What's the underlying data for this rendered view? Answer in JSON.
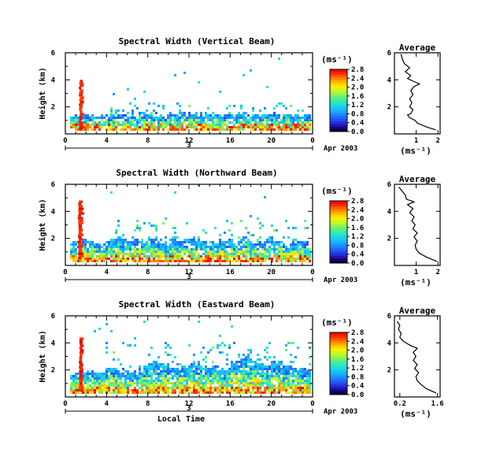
{
  "figure": {
    "day_label": "3",
    "month_label": "Apr 2003",
    "xlabel": "Local Time",
    "ylabel": "Height (km)",
    "unit_label": "(ms⁻¹)",
    "avg_xlabel": "(ms⁻¹)"
  },
  "chart_data": [
    {
      "type": "heatmap",
      "title": "Spectral Width (Vertical Beam)",
      "xlabel": "Local Time",
      "ylabel": "Height (km)",
      "xlim": [
        0,
        24
      ],
      "ylim": [
        0,
        6
      ],
      "xticks": [
        "0",
        "4",
        "8",
        "12",
        "16",
        "20",
        "0"
      ],
      "yticks": [
        "2",
        "4",
        "6"
      ],
      "colorbar_ticks": [
        "0.0",
        "0.4",
        "0.8",
        "1.2",
        "1.6",
        "2.0",
        "2.4",
        "2.8"
      ],
      "colorbar_range": [
        0,
        2.8
      ],
      "grid": false,
      "clutter_tops": [
        1.3,
        1.45,
        1.4,
        1.35,
        1.45,
        1.4,
        1.35,
        1.5,
        1.45,
        1.4,
        1.5,
        1.55,
        1.5,
        1.45,
        1.5,
        1.4,
        1.45,
        1.5,
        1.4,
        1.35,
        1.45,
        1.4,
        1.35,
        1.4
      ],
      "plume": {
        "time_range": [
          1.3,
          1.7
        ],
        "top_km": 4.0
      },
      "scattered_upper_km": [
        2.0,
        2.3
      ],
      "average": {
        "title": "Average",
        "xlabel": "(ms⁻¹)",
        "xticks": [
          "1",
          "2"
        ],
        "xlim": [
          0,
          2.1
        ],
        "yticks": [
          "2",
          "4",
          "6"
        ],
        "ylim": [
          0,
          6
        ],
        "profile": [
          {
            "h": 0.3,
            "v": 1.9
          },
          {
            "h": 0.5,
            "v": 1.5
          },
          {
            "h": 0.8,
            "v": 1.05
          },
          {
            "h": 1.0,
            "v": 0.95
          },
          {
            "h": 1.2,
            "v": 0.7
          },
          {
            "h": 1.4,
            "v": 0.6
          },
          {
            "h": 1.5,
            "v": 0.75
          },
          {
            "h": 1.8,
            "v": 0.85
          },
          {
            "h": 2.0,
            "v": 0.7
          },
          {
            "h": 2.3,
            "v": 0.8
          },
          {
            "h": 2.6,
            "v": 0.7
          },
          {
            "h": 2.9,
            "v": 0.85
          },
          {
            "h": 3.2,
            "v": 0.75
          },
          {
            "h": 3.5,
            "v": 0.9
          },
          {
            "h": 3.7,
            "v": 1.15
          },
          {
            "h": 3.9,
            "v": 0.85
          },
          {
            "h": 4.1,
            "v": 0.6
          },
          {
            "h": 4.3,
            "v": 0.75
          },
          {
            "h": 4.6,
            "v": 0.5
          },
          {
            "h": 4.9,
            "v": 0.7
          },
          {
            "h": 5.2,
            "v": 0.45
          },
          {
            "h": 5.6,
            "v": 0.35
          },
          {
            "h": 5.9,
            "v": 0.3
          }
        ]
      }
    },
    {
      "type": "heatmap",
      "title": "Spectral Width (Northward Beam)",
      "xlabel": "Local Time",
      "ylabel": "Height (km)",
      "xlim": [
        0,
        24
      ],
      "ylim": [
        0,
        6
      ],
      "xticks": [
        "0",
        "4",
        "8",
        "12",
        "16",
        "20",
        "0"
      ],
      "yticks": [
        "2",
        "4",
        "6"
      ],
      "colorbar_ticks": [
        "0.0",
        "0.4",
        "0.8",
        "1.2",
        "1.6",
        "2.0",
        "2.4",
        "2.8"
      ],
      "colorbar_range": [
        0,
        2.8
      ],
      "grid": false,
      "clutter_tops": [
        1.7,
        1.9,
        1.8,
        1.6,
        1.9,
        2.0,
        1.8,
        1.9,
        2.1,
        1.7,
        1.8,
        1.9,
        2.0,
        1.8,
        1.7,
        1.9,
        1.8,
        2.0,
        1.7,
        1.8,
        1.9,
        1.6,
        1.8,
        1.7
      ],
      "plume": {
        "time_range": [
          1.2,
          1.7
        ],
        "top_km": 4.8
      },
      "scattered_upper_km": [
        2.2,
        3.3
      ],
      "average": {
        "title": "Average",
        "xlabel": "(ms⁻¹)",
        "xticks": [
          "1",
          "2"
        ],
        "xlim": [
          0,
          2.1
        ],
        "yticks": [
          "2",
          "4",
          "6"
        ],
        "ylim": [
          0,
          6
        ],
        "profile": [
          {
            "h": 0.3,
            "v": 1.95
          },
          {
            "h": 0.6,
            "v": 1.5
          },
          {
            "h": 0.9,
            "v": 1.15
          },
          {
            "h": 1.2,
            "v": 1.0
          },
          {
            "h": 1.5,
            "v": 0.95
          },
          {
            "h": 1.8,
            "v": 1.05
          },
          {
            "h": 2.1,
            "v": 0.9
          },
          {
            "h": 2.4,
            "v": 1.05
          },
          {
            "h": 2.7,
            "v": 0.85
          },
          {
            "h": 3.0,
            "v": 0.95
          },
          {
            "h": 3.3,
            "v": 0.8
          },
          {
            "h": 3.6,
            "v": 0.9
          },
          {
            "h": 3.9,
            "v": 0.7
          },
          {
            "h": 4.2,
            "v": 0.85
          },
          {
            "h": 4.5,
            "v": 0.6
          },
          {
            "h": 4.7,
            "v": 0.9
          },
          {
            "h": 4.9,
            "v": 0.55
          },
          {
            "h": 5.2,
            "v": 0.5
          },
          {
            "h": 5.5,
            "v": 0.35
          },
          {
            "h": 5.8,
            "v": 0.2
          }
        ]
      }
    },
    {
      "type": "heatmap",
      "title": "Spectral Width (Eastward Beam)",
      "xlabel": "Local Time",
      "ylabel": "Height (km)",
      "xlim": [
        0,
        24
      ],
      "ylim": [
        0,
        6
      ],
      "xticks": [
        "0",
        "4",
        "8",
        "12",
        "16",
        "20",
        "0"
      ],
      "yticks": [
        "2",
        "4",
        "6"
      ],
      "colorbar_ticks": [
        "0.0",
        "0.4",
        "0.8",
        "1.2",
        "1.6",
        "2.0",
        "2.4",
        "2.8"
      ],
      "colorbar_range": [
        0,
        2.8
      ],
      "grid": false,
      "clutter_tops": [
        1.6,
        1.8,
        1.9,
        1.8,
        2.2,
        2.0,
        1.9,
        2.3,
        2.6,
        2.4,
        2.1,
        2.3,
        2.5,
        2.2,
        2.4,
        2.1,
        2.6,
        3.2,
        2.8,
        2.5,
        2.7,
        2.4,
        2.2,
        2.0
      ],
      "plume": {
        "time_range": [
          1.3,
          1.7
        ],
        "top_km": 4.4
      },
      "scattered_upper_km": [
        2.5,
        4.0
      ],
      "average": {
        "title": "Average",
        "xlabel": "(ms⁻¹)",
        "xticks": [
          "0.2",
          "1.6"
        ],
        "xlim": [
          0,
          1.7
        ],
        "yticks": [
          "2",
          "4",
          "6"
        ],
        "ylim": [
          0,
          6
        ],
        "profile": [
          {
            "h": 0.3,
            "v": 1.55
          },
          {
            "h": 0.6,
            "v": 1.2
          },
          {
            "h": 0.9,
            "v": 1.0
          },
          {
            "h": 1.2,
            "v": 0.85
          },
          {
            "h": 1.5,
            "v": 0.8
          },
          {
            "h": 1.8,
            "v": 0.9
          },
          {
            "h": 2.1,
            "v": 0.75
          },
          {
            "h": 2.4,
            "v": 0.85
          },
          {
            "h": 2.7,
            "v": 0.7
          },
          {
            "h": 3.0,
            "v": 0.8
          },
          {
            "h": 3.3,
            "v": 0.7
          },
          {
            "h": 3.6,
            "v": 0.85
          },
          {
            "h": 3.8,
            "v": 0.6
          },
          {
            "h": 4.1,
            "v": 0.35
          },
          {
            "h": 4.4,
            "v": 0.2
          },
          {
            "h": 4.7,
            "v": 0.25
          },
          {
            "h": 5.0,
            "v": 0.15
          },
          {
            "h": 5.3,
            "v": 0.2
          },
          {
            "h": 5.6,
            "v": 0.1
          }
        ]
      }
    }
  ]
}
